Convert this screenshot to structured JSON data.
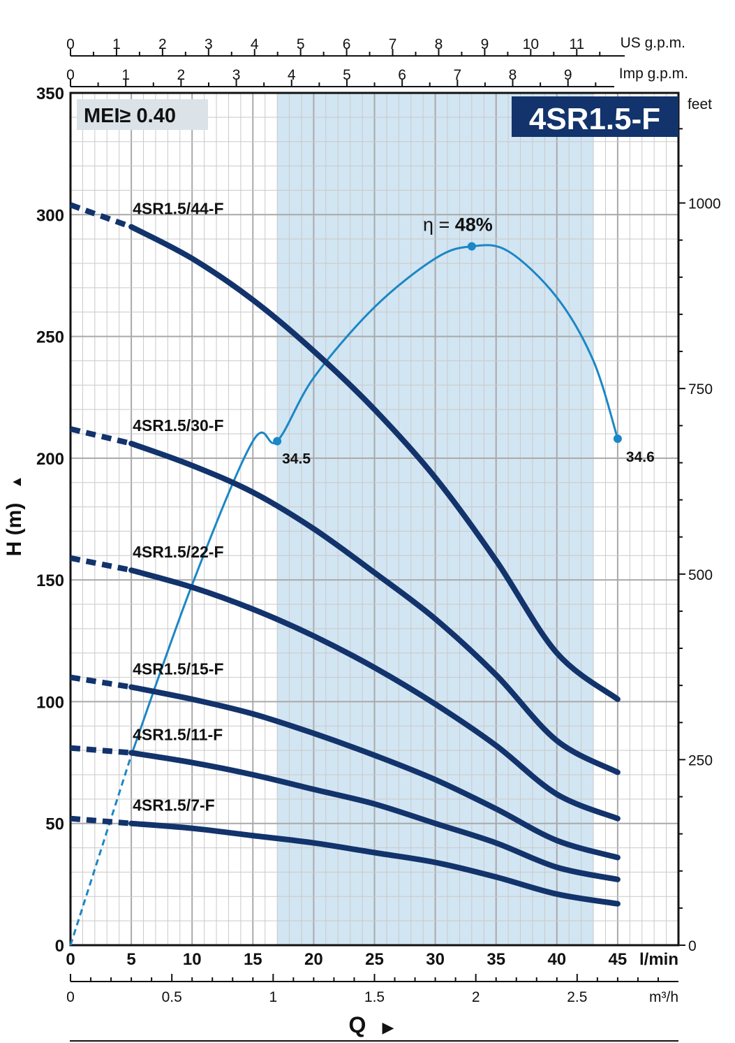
{
  "chart_data": {
    "type": "line",
    "title": "4SR1.5-F",
    "badge": "MEI≥ 0.40",
    "ylabel": "H (m)",
    "ylabel_arrow": "▲",
    "xlabel": "Q",
    "xlabel_arrow": "▶",
    "ylim": [
      0,
      350
    ],
    "xlim": [
      0,
      50
    ],
    "grid": true,
    "preferred_range_lpm": [
      17,
      43
    ],
    "bottom_axis": {
      "unit": "l/min",
      "ticks": [
        "0",
        "5",
        "10",
        "15",
        "20",
        "25",
        "30",
        "35",
        "40",
        "45"
      ],
      "values": [
        0,
        5,
        10,
        15,
        20,
        25,
        30,
        35,
        40,
        45
      ]
    },
    "m3h_axis": {
      "unit": "m³/h",
      "ticks": [
        "0",
        "0.5",
        "1",
        "1.5",
        "2",
        "2.5"
      ],
      "values": [
        0,
        0.5,
        1,
        1.5,
        2,
        2.5
      ]
    },
    "us_gpm_axis": {
      "unit": "US g.p.m.",
      "ticks": [
        "0",
        "1",
        "2",
        "3",
        "4",
        "5",
        "6",
        "7",
        "8",
        "9",
        "10",
        "11"
      ],
      "values": [
        0,
        1,
        2,
        3,
        4,
        5,
        6,
        7,
        8,
        9,
        10,
        11
      ]
    },
    "imp_gpm_axis": {
      "unit": "Imp g.p.m.",
      "ticks": [
        "0",
        "1",
        "2",
        "3",
        "4",
        "5",
        "6",
        "7",
        "8",
        "9"
      ],
      "values": [
        0,
        1,
        2,
        3,
        4,
        5,
        6,
        7,
        8,
        9
      ]
    },
    "left_axis": {
      "ticks": [
        "0",
        "50",
        "100",
        "150",
        "200",
        "250",
        "300",
        "350"
      ],
      "values": [
        0,
        50,
        100,
        150,
        200,
        250,
        300,
        350
      ]
    },
    "feet_axis": {
      "unit": "feet",
      "ticks": [
        "0",
        "250",
        "500",
        "750",
        "1000"
      ],
      "values": [
        0,
        250,
        500,
        750,
        1000
      ]
    },
    "x": [
      0,
      5,
      10,
      15,
      20,
      25,
      30,
      35,
      40,
      45
    ],
    "dashed_until": 5,
    "series": [
      {
        "name": "4SR1.5/44-F",
        "values": [
          304,
          295,
          282,
          265,
          244,
          220,
          192,
          158,
          120,
          101
        ]
      },
      {
        "name": "4SR1.5/30-F",
        "values": [
          212,
          206,
          197,
          186,
          171,
          153,
          134,
          111,
          84,
          71
        ]
      },
      {
        "name": "4SR1.5/22-F",
        "values": [
          159,
          154,
          147,
          138,
          127,
          114,
          99,
          82,
          62,
          52
        ]
      },
      {
        "name": "4SR1.5/15-F",
        "values": [
          110,
          106,
          101,
          95,
          87,
          78,
          68,
          56,
          43,
          36
        ]
      },
      {
        "name": "4SR1.5/11-F",
        "values": [
          81,
          79,
          75,
          70,
          64,
          58,
          50,
          42,
          32,
          27
        ]
      },
      {
        "name": "4SR1.5/7-F",
        "values": [
          52,
          50,
          48,
          45,
          42,
          38,
          34,
          28,
          21,
          17
        ]
      }
    ],
    "efficiency": {
      "label": "η = 48%",
      "label_prefix": "η =",
      "label_value": "48%",
      "points": [
        [
          0,
          0
        ],
        [
          5,
          78
        ],
        [
          10,
          148
        ],
        [
          15,
          207
        ],
        [
          17,
          207
        ],
        [
          20,
          233
        ],
        [
          25,
          262
        ],
        [
          30,
          282
        ],
        [
          33,
          287
        ],
        [
          36,
          285
        ],
        [
          40,
          266
        ],
        [
          43,
          240
        ],
        [
          45,
          208
        ]
      ],
      "start_label": "34.5",
      "end_label": "34.6",
      "start_point": [
        17,
        207
      ],
      "peak_point": [
        33,
        287
      ],
      "end_point": [
        45,
        208
      ],
      "dashed_until": 5
    },
    "colors": {
      "curve": "#12336b",
      "efficiency": "#1b87c6",
      "preferred": "#d2e5f2",
      "grid_minor": "#c9c9c9",
      "grid_major": "#a9a9a9",
      "badge_bg": "#dbe2e8",
      "title_bg": "#12336b",
      "title_fg": "#ffffff"
    }
  }
}
